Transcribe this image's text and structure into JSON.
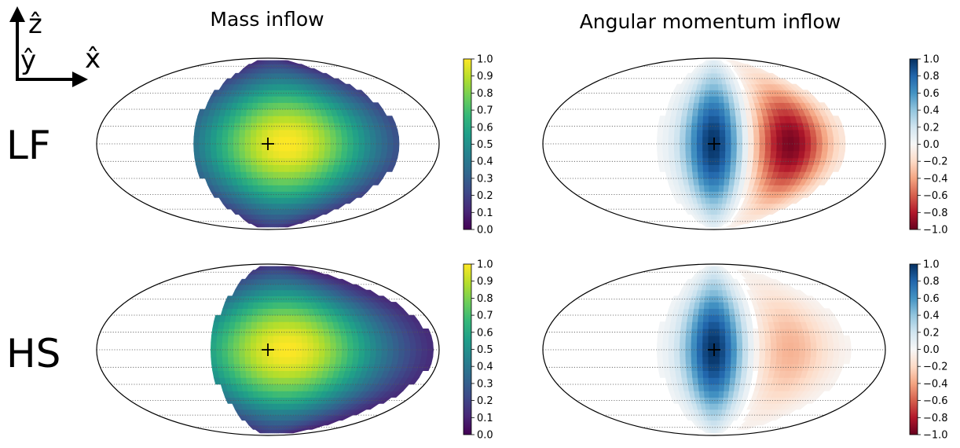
{
  "axes_glyph": {
    "z": "ẑ",
    "y": "ŷ",
    "x": "x̂"
  },
  "column_titles": [
    "Mass inflow",
    "Angular momentum inflow"
  ],
  "row_labels": [
    "LF",
    "HS"
  ],
  "colormaps": {
    "viridis": [
      "#440154",
      "#482878",
      "#3e4a89",
      "#31688e",
      "#26828e",
      "#1f9e89",
      "#35b779",
      "#6ece58",
      "#b5de2b",
      "#fde725"
    ],
    "rdbu": [
      "#67001f",
      "#b2182b",
      "#d6604d",
      "#f4a582",
      "#fddbc7",
      "#f7f7f7",
      "#d1e5f0",
      "#92c5de",
      "#4393c3",
      "#2166ac",
      "#053061"
    ]
  },
  "chart_data": [
    {
      "type": "heatmap",
      "projection": "mollweide",
      "quantity": "mass",
      "title": "Mass inflow",
      "row_label": "LF",
      "grid": true,
      "center_marker": "+",
      "colorbar": {
        "cmap": "viridis",
        "range": [
          0.0,
          1.0
        ],
        "ticks": [
          "1.0",
          "0.9",
          "0.8",
          "0.7",
          "0.6",
          "0.5",
          "0.4",
          "0.3",
          "0.2",
          "0.1",
          "0.0"
        ]
      },
      "field": {
        "peak_value": 1.0,
        "inflow_lon_range_deg": [
          -80,
          140
        ],
        "falloff_deg": 70
      }
    },
    {
      "type": "heatmap",
      "projection": "mollweide",
      "quantity": "angular_momentum",
      "title": "Angular momentum inflow",
      "row_label": "LF",
      "grid": true,
      "center_marker": "+",
      "colorbar": {
        "cmap": "rdbu",
        "range": [
          -1.0,
          1.0
        ],
        "ticks": [
          "1.0",
          "0.8",
          "0.6",
          "0.4",
          "0.2",
          "0.0",
          "−0.2",
          "−0.4",
          "−0.6",
          "−0.8",
          "−1.0"
        ]
      },
      "field": {
        "blue_center_lon_deg": 0,
        "red_center_lon_deg": 80,
        "blue_peak": 1.0,
        "red_peak": -0.95,
        "inflow_lon_range_deg": [
          -80,
          140
        ]
      }
    },
    {
      "type": "heatmap",
      "projection": "mollweide",
      "quantity": "mass",
      "title": "Mass inflow",
      "row_label": "HS",
      "grid": true,
      "center_marker": "+",
      "colorbar": {
        "cmap": "viridis",
        "range": [
          0.0,
          1.0
        ],
        "ticks": [
          "1.0",
          "0.9",
          "0.8",
          "0.7",
          "0.6",
          "0.5",
          "0.4",
          "0.3",
          "0.2",
          "0.1",
          "0.0"
        ]
      },
      "field": {
        "peak_value": 1.0,
        "inflow_lon_range_deg": [
          -60,
          175
        ],
        "falloff_deg": 75
      }
    },
    {
      "type": "heatmap",
      "projection": "mollweide",
      "quantity": "angular_momentum",
      "title": "Angular momentum inflow",
      "row_label": "HS",
      "grid": true,
      "center_marker": "+",
      "colorbar": {
        "cmap": "rdbu",
        "range": [
          -1.0,
          1.0
        ],
        "ticks": [
          "1.0",
          "0.8",
          "0.6",
          "0.4",
          "0.2",
          "0.0",
          "−0.2",
          "−0.4",
          "−0.6",
          "−0.8",
          "−1.0"
        ]
      },
      "field": {
        "blue_center_lon_deg": 0,
        "red_center_lon_deg": 80,
        "blue_peak": 1.0,
        "red_peak": -0.35,
        "inflow_lon_range_deg": [
          -60,
          175
        ]
      }
    }
  ]
}
